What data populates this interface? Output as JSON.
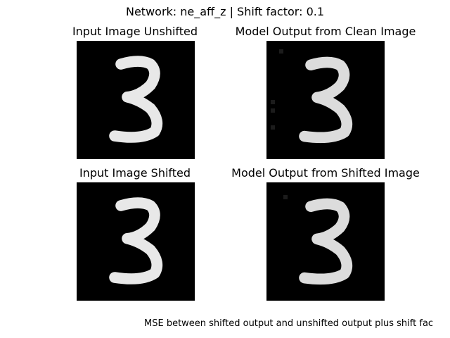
{
  "figure": {
    "suptitle": "Network: ne_aff_z | Shift factor: 0.1",
    "footnote": "MSE between shifted output and unshifted output plus shift fac",
    "panels": [
      {
        "title": "Input Image Unshifted",
        "image": "digit-3-grayscale",
        "shift": 0
      },
      {
        "title": "Model Output from Clean Image",
        "image": "digit-3-reconstruction",
        "shift": 0
      },
      {
        "title": "Input Image Shifted",
        "image": "digit-3-grayscale-shifted",
        "shift": 0.1
      },
      {
        "title": "Model Output from Shifted Image",
        "image": "digit-3-reconstruction-shifted",
        "shift": 0.1
      }
    ],
    "colors": {
      "background": "#000000",
      "digit": "#ffffff"
    }
  }
}
